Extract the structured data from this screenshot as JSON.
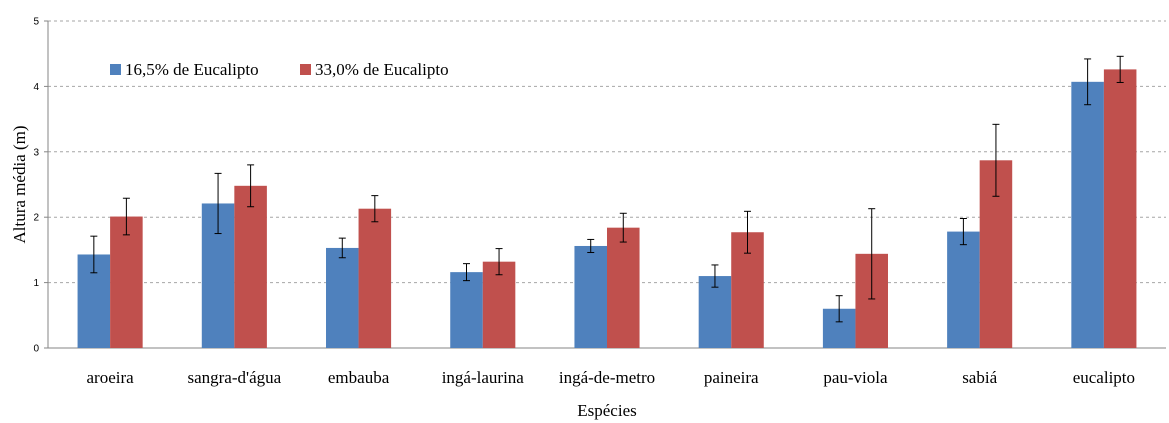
{
  "chart_data": {
    "type": "bar",
    "xlabel": "Espécies",
    "ylabel": "Altura média (m)",
    "ylim": [
      0,
      5
    ],
    "yticks": [
      "0",
      "1",
      "2",
      "3",
      "4",
      "5"
    ],
    "grid": true,
    "legend_position": "top-left",
    "categories": [
      "aroeira",
      "sangra-d'água",
      "embauba",
      "ingá-laurina",
      "ingá-de-metro",
      "paineira",
      "pau-viola",
      "sabiá",
      "eucalipto"
    ],
    "series": [
      {
        "name": "16,5% de Eucalipto",
        "color": "#4f81bd",
        "values": [
          1.43,
          2.21,
          1.53,
          1.16,
          1.56,
          1.1,
          0.6,
          1.78,
          4.07
        ],
        "error": [
          0.28,
          0.46,
          0.15,
          0.13,
          0.1,
          0.17,
          0.2,
          0.2,
          0.35
        ]
      },
      {
        "name": "33,0% de Eucalipto",
        "color": "#c0504d",
        "values": [
          2.01,
          2.48,
          2.13,
          1.32,
          1.84,
          1.77,
          1.44,
          2.87,
          4.26
        ],
        "error": [
          0.28,
          0.32,
          0.2,
          0.2,
          0.22,
          0.32,
          0.69,
          0.55,
          0.2
        ]
      }
    ]
  }
}
